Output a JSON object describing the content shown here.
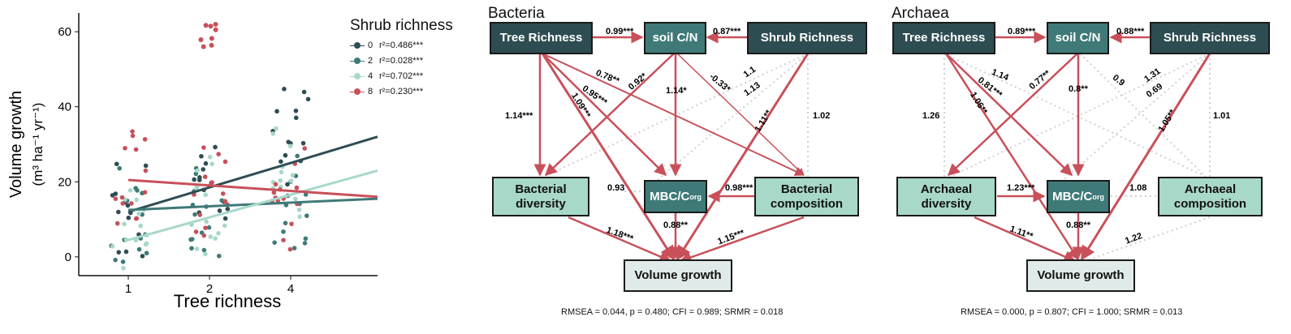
{
  "chart_data": {
    "type": "scatter",
    "xlabel": "Tree richness",
    "ylabel_line1": "Volume growth",
    "ylabel_line2": "(m³ ha⁻¹ yr⁻¹)",
    "categories": [
      "1",
      "2",
      "4"
    ],
    "yticks": [
      "0",
      "20",
      "40",
      "60"
    ],
    "ylim": [
      -5,
      65
    ],
    "legend_title": "Shrub richness",
    "series": [
      {
        "name": "0",
        "fit": "r²=0.486***",
        "color": "#2e4d52",
        "line": [
          12,
          32
        ]
      },
      {
        "name": "2",
        "fit": "r²=0.028***",
        "color": "#3f7a78",
        "line": [
          12.5,
          15.5
        ]
      },
      {
        "name": "4",
        "fit": "r²=0.702***",
        "color": "#a8d8c8",
        "line": [
          4.5,
          23
        ]
      },
      {
        "name": "8",
        "fit": "r²=0.230***",
        "color": "#c8505a",
        "line": [
          20.5,
          16
        ]
      }
    ]
  },
  "bacteria": {
    "title": "Bacteria",
    "nodes": {
      "tree": "Tree Richness",
      "soilcn": "soil C/N",
      "shrub": "Shrub Richness",
      "div_1": "Bacterial",
      "div_2": "diversity",
      "mbc": "MBC/C",
      "mbc_sub": "org",
      "comp_1": "Bacterial",
      "comp_2": "composition",
      "vol": "Volume growth"
    },
    "coefs": {
      "tree_soil": "0.99***",
      "shrub_soil": "0.87***",
      "tree_div": "1.14***",
      "c078": "0.78**",
      "c092": "0.92*",
      "c095": "0.95***",
      "c109": "1.09***",
      "c114": "1.14*",
      "c033": "-0.33*",
      "c11": "1.1",
      "c113": "1.13",
      "c111": "1.11**",
      "c102": "1.02",
      "c093": "0.93",
      "c098": "0.98***",
      "c118": "1.18***",
      "c088": "0.88**",
      "c115": "1.15***"
    },
    "fit": "RMSEA = 0.044, p = 0.480; CFI = 0.989; SRMR = 0.018"
  },
  "archaea": {
    "title": "Archaea",
    "nodes": {
      "tree": "Tree Richness",
      "soilcn": "soil C/N",
      "shrub": "Shrub Richness",
      "div_1": "Archaeal",
      "div_2": "diversity",
      "mbc": "MBC/C",
      "mbc_sub": "org",
      "comp_1": "Archaeal",
      "comp_2": "composition",
      "vol": "Volume growth"
    },
    "coefs": {
      "tree_soil": "0.89***",
      "shrub_soil": "0.88***",
      "c126": "1.26",
      "c114": "1.14",
      "c081": "0.81***",
      "c106": "1.06**",
      "c077": "0.77**",
      "c08": "0.8**",
      "c09": "0.9",
      "c131": "1.31",
      "c069": "0.69",
      "c105": "1.05**",
      "c101": "1.01",
      "c123": "1.23***",
      "c108": "1.08",
      "c111": "1.11**",
      "c088": "0.88**",
      "c122": "1.22"
    },
    "fit": "RMSEA = 0.000, p = 0.807; CFI = 1.000; SRMR = 0.013"
  }
}
